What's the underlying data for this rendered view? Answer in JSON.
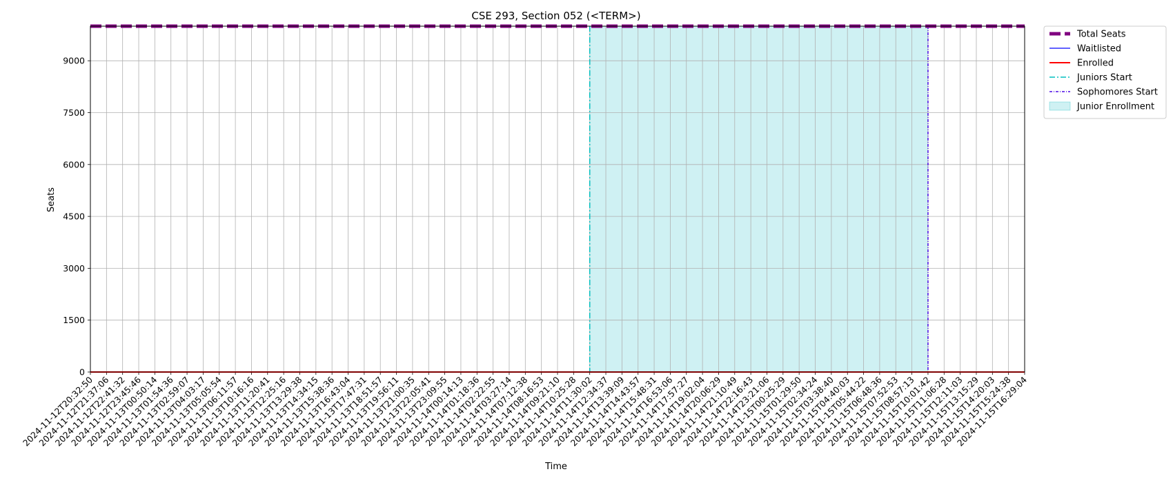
{
  "chart_data": {
    "type": "line",
    "title": "CSE 293, Section 052 (<TERM>)",
    "xlabel": "Time",
    "ylabel": "Seats",
    "ylim": [
      0,
      10000
    ],
    "yticks": [
      0,
      1500,
      3000,
      4500,
      6000,
      7500,
      9000
    ],
    "grid": true,
    "legend_position": "outside-top-right",
    "x": [
      "2024-11-12T20:32:50",
      "2024-11-12T21:37:06",
      "2024-11-12T22:41:32",
      "2024-11-12T23:45:46",
      "2024-11-13T00:50:14",
      "2024-11-13T01:54:36",
      "2024-11-13T02:59:07",
      "2024-11-13T04:03:17",
      "2024-11-13T05:05:54",
      "2024-11-13T06:11:57",
      "2024-11-13T10:16:16",
      "2024-11-13T11:20:41",
      "2024-11-13T12:25:16",
      "2024-11-13T13:29:38",
      "2024-11-13T14:34:15",
      "2024-11-13T15:38:36",
      "2024-11-13T16:43:04",
      "2024-11-13T17:47:31",
      "2024-11-13T18:51:57",
      "2024-11-13T19:56:11",
      "2024-11-13T21:00:35",
      "2024-11-13T22:05:41",
      "2024-11-13T23:09:55",
      "2024-11-14T00:14:13",
      "2024-11-14T01:18:36",
      "2024-11-14T02:22:55",
      "2024-11-14T03:27:14",
      "2024-11-14T07:12:38",
      "2024-11-14T08:16:53",
      "2024-11-14T09:21:10",
      "2024-11-14T10:25:28",
      "2024-11-14T11:30:02",
      "2024-11-14T12:34:37",
      "2024-11-14T13:39:09",
      "2024-11-14T14:43:57",
      "2024-11-14T15:48:31",
      "2024-11-14T16:53:06",
      "2024-11-14T17:57:27",
      "2024-11-14T19:02:04",
      "2024-11-14T20:06:29",
      "2024-11-14T21:10:49",
      "2024-11-14T22:16:43",
      "2024-11-14T23:21:06",
      "2024-11-15T00:25:29",
      "2024-11-15T01:29:50",
      "2024-11-15T02:34:24",
      "2024-11-15T03:38:40",
      "2024-11-15T04:40:03",
      "2024-11-15T05:44:22",
      "2024-11-15T06:48:36",
      "2024-11-15T07:52:53",
      "2024-11-15T08:57:13",
      "2024-11-15T10:01:42",
      "2024-11-15T11:06:28",
      "2024-11-15T12:11:03",
      "2024-11-15T13:15:29",
      "2024-11-15T14:20:03",
      "2024-11-15T15:24:38",
      "2024-11-15T16:29:04"
    ],
    "series": [
      {
        "name": "Total Seats",
        "color": "#800080",
        "style": "dashed-thick",
        "value": 9999
      },
      {
        "name": "Waitlisted",
        "color": "#0000ff",
        "style": "solid-thin",
        "value": 0
      },
      {
        "name": "Enrolled",
        "color": "#ff0000",
        "style": "solid",
        "value": 0
      }
    ],
    "vlines": [
      {
        "name": "Juniors Start",
        "color": "#00bfbf",
        "style": "dashdot",
        "x": "2024-11-14T11:30:02"
      },
      {
        "name": "Sophomores Start",
        "color": "#4b0ae6",
        "style": "dashdotdense",
        "x": "2024-11-15T10:01:42"
      }
    ],
    "span": {
      "name": "Junior Enrollment",
      "color": "#00b5bd",
      "x_start": "2024-11-14T11:30:02",
      "x_end": "2024-11-15T10:01:42"
    }
  }
}
